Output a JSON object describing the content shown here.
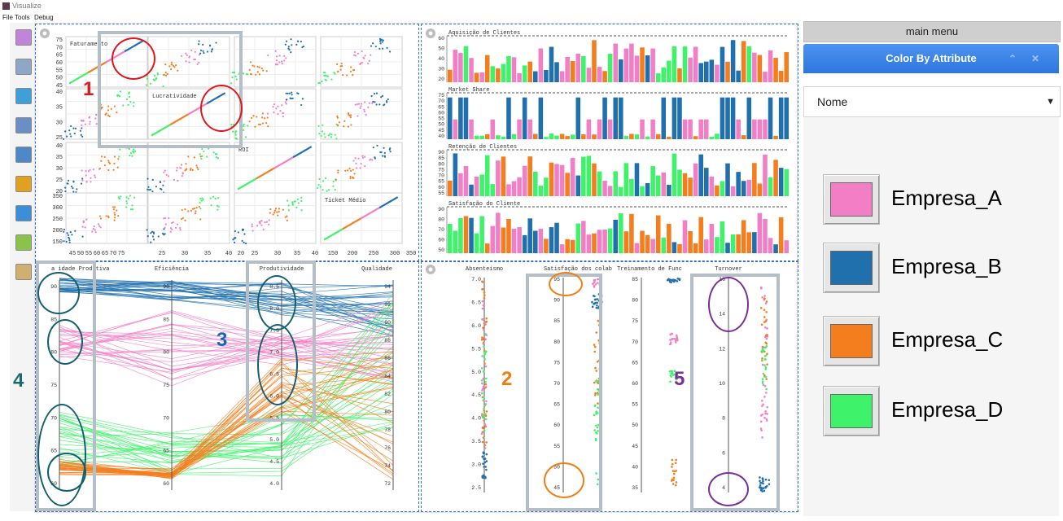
{
  "window": {
    "title": "Visualize"
  },
  "menu": {
    "file": "File",
    "tools": "Tools",
    "debug": "Debug"
  },
  "toolbar": [
    {
      "icon": "color-palette-icon"
    },
    {
      "icon": "list-settings-icon"
    },
    {
      "icon": "filter-add-icon"
    },
    {
      "icon": "copy-windows-icon"
    },
    {
      "icon": "filter-table-icon"
    },
    {
      "icon": "zoom-icon"
    },
    {
      "icon": "comment-icon"
    },
    {
      "icon": "pencil-icon"
    },
    {
      "icon": "document-icon"
    }
  ],
  "colors": {
    "Empresa_A": "#f27fc6",
    "Empresa_B": "#2070ae",
    "Empresa_C": "#f47e1e",
    "Empresa_D": "#3ef26a"
  },
  "scatter_matrix": {
    "diag_labels": [
      "Faturamento",
      "Lucratividade",
      "ROI",
      "Ticket Médio"
    ],
    "x_ticks": [
      "45",
      "50",
      "55",
      "60",
      "65",
      "70",
      "75",
      "25",
      "30",
      "35",
      "40",
      "20",
      "25",
      "30",
      "35",
      "40",
      "150",
      "200",
      "250",
      "300",
      "350"
    ],
    "y_ticks_row1": [
      "75",
      "70",
      "65",
      "60",
      "55",
      "50",
      "45"
    ],
    "y_ticks_row2": [
      "40",
      "35",
      "30",
      "25"
    ],
    "y_ticks_row3": [
      "40",
      "35",
      "30",
      "25",
      "20"
    ],
    "y_ticks_row4": [
      "350",
      "300",
      "250",
      "200",
      "150"
    ]
  },
  "bar_charts": {
    "titles": [
      "Aquisição de Clientes",
      "Market Share",
      "Retenção de Clientes",
      "Satisfação do Cliente"
    ],
    "ticks_1": [
      "60",
      "50",
      "40",
      "30",
      "20"
    ],
    "ticks_2": [
      "75",
      "70",
      "65",
      "60",
      "55",
      "50",
      "45",
      "40"
    ],
    "ticks_3": [
      "90",
      "85",
      "80",
      "75",
      "70",
      "65",
      "60",
      "55"
    ],
    "ticks_4": [
      "90",
      "80",
      "70",
      "60",
      "50"
    ]
  },
  "parallel_coords": {
    "axes": [
      "a idade Produtiva",
      "Eficiência",
      "Produtividade",
      "Qualidade"
    ],
    "ticks_1": [
      "90",
      "85",
      "80",
      "75",
      "70",
      "65",
      "60"
    ],
    "ticks_2": [
      "90",
      "85",
      "80",
      "75",
      "70",
      "65",
      "60"
    ],
    "ticks_3": [
      "8.5",
      "8.0",
      "7.5",
      "7.0",
      "6.5",
      "6.0",
      "5.5",
      "5.0",
      "4.5",
      "4.0"
    ],
    "ticks_4": [
      "94",
      "92",
      "90",
      "88",
      "86",
      "84",
      "82",
      "80",
      "78",
      "76",
      "74",
      "72"
    ]
  },
  "dot_axes": {
    "axes": [
      "Absenteísmo",
      "Satisfação dos colab",
      "Treinamento de Func",
      "Turnover"
    ],
    "ticks_1": [
      "7.0",
      "6.5",
      "6.0",
      "5.5",
      "5.0",
      "4.5",
      "4.0",
      "3.5",
      "3.0",
      "2.5"
    ],
    "ticks_2": [
      "95",
      "90",
      "85",
      "80",
      "75",
      "70",
      "65",
      "60",
      "55",
      "50",
      "45"
    ],
    "ticks_3": [
      "85",
      "80",
      "75",
      "70",
      "65",
      "60",
      "55",
      "50",
      "45",
      "40",
      "35"
    ],
    "ticks_4": [
      "16",
      "14",
      "12",
      "10",
      "8",
      "6",
      "4"
    ]
  },
  "callouts": [
    "1",
    "2",
    "3",
    "4",
    "5"
  ],
  "panel": {
    "main_menu": "main menu",
    "color_by_title": "Color By Attribute",
    "collapse": "⌃",
    "close": "✕",
    "select_value": "Nome",
    "select_arrow": "▼",
    "legend": [
      {
        "label": "Empresa_A",
        "color": "#f27fc6"
      },
      {
        "label": "Empresa_B",
        "color": "#2070ae"
      },
      {
        "label": "Empresa_C",
        "color": "#f47e1e"
      },
      {
        "label": "Empresa_D",
        "color": "#3ef26a"
      }
    ]
  }
}
